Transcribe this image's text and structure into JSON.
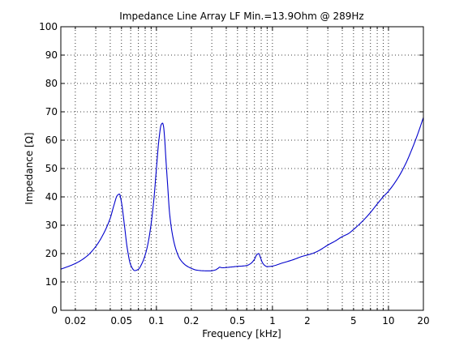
{
  "chart_data": {
    "type": "line",
    "title": "Impedance Line Array LF Min.=13.9Ohm @ 289Hz",
    "xlabel": "Frequency [kHz]",
    "ylabel": "Impedance [Ω]",
    "x_scale": "log",
    "xlim": [
      0.015,
      20
    ],
    "ylim": [
      0,
      100
    ],
    "grid": true,
    "x_ticks": [
      0.02,
      0.05,
      0.1,
      0.2,
      0.5,
      1,
      2,
      5,
      10,
      20
    ],
    "x_tick_labels": [
      "0.02",
      "0.05",
      "0.1",
      "0.2",
      "0.5",
      "1",
      "2",
      "5",
      "10",
      "20"
    ],
    "y_ticks": [
      0,
      10,
      20,
      30,
      40,
      50,
      60,
      70,
      80,
      90,
      100
    ],
    "y_tick_labels": [
      "0",
      "10",
      "20",
      "30",
      "40",
      "50",
      "60",
      "70",
      "80",
      "90",
      "100"
    ],
    "line_color": "#0000cc",
    "series": [
      {
        "x": [
          0.015,
          0.02,
          0.025,
          0.03,
          0.035,
          0.04,
          0.043,
          0.046,
          0.048,
          0.05,
          0.053,
          0.056,
          0.06,
          0.065,
          0.07,
          0.075,
          0.08,
          0.085,
          0.09,
          0.095,
          0.1,
          0.105,
          0.11,
          0.113,
          0.115,
          0.118,
          0.12,
          0.125,
          0.13,
          0.14,
          0.15,
          0.16,
          0.18,
          0.2,
          0.22,
          0.25,
          0.289,
          0.32,
          0.34,
          0.35,
          0.37,
          0.4,
          0.45,
          0.5,
          0.55,
          0.6,
          0.65,
          0.7,
          0.73,
          0.76,
          0.79,
          0.82,
          0.86,
          0.9,
          1.0,
          1.2,
          1.5,
          1.8,
          2.0,
          2.2,
          2.5,
          3.0,
          3.5,
          4.0,
          4.5,
          5.0,
          6.0,
          7.0,
          8.0,
          9.0,
          10.0,
          12.0,
          14.0,
          16.0,
          18.0,
          20.0
        ],
        "y": [
          14.5,
          16.5,
          19.0,
          22.5,
          27.0,
          32.5,
          37.0,
          40.5,
          41.0,
          38.0,
          30.0,
          22.0,
          16.0,
          14.0,
          14.5,
          16.5,
          19.5,
          24.0,
          30.5,
          39.0,
          50.0,
          60.0,
          65.5,
          66.0,
          65.0,
          60.0,
          55.0,
          44.0,
          34.0,
          25.0,
          20.5,
          18.0,
          15.8,
          14.8,
          14.2,
          13.95,
          13.9,
          14.2,
          14.8,
          15.2,
          15.0,
          15.1,
          15.3,
          15.5,
          15.6,
          15.8,
          16.5,
          18.0,
          19.5,
          20.0,
          18.5,
          16.8,
          15.8,
          15.4,
          15.6,
          16.6,
          17.8,
          19.0,
          19.5,
          20.0,
          21.0,
          23.0,
          24.5,
          26.0,
          27.0,
          28.5,
          31.5,
          34.5,
          37.5,
          40.0,
          42.0,
          46.5,
          51.5,
          57.0,
          62.5,
          68.0
        ]
      }
    ]
  }
}
